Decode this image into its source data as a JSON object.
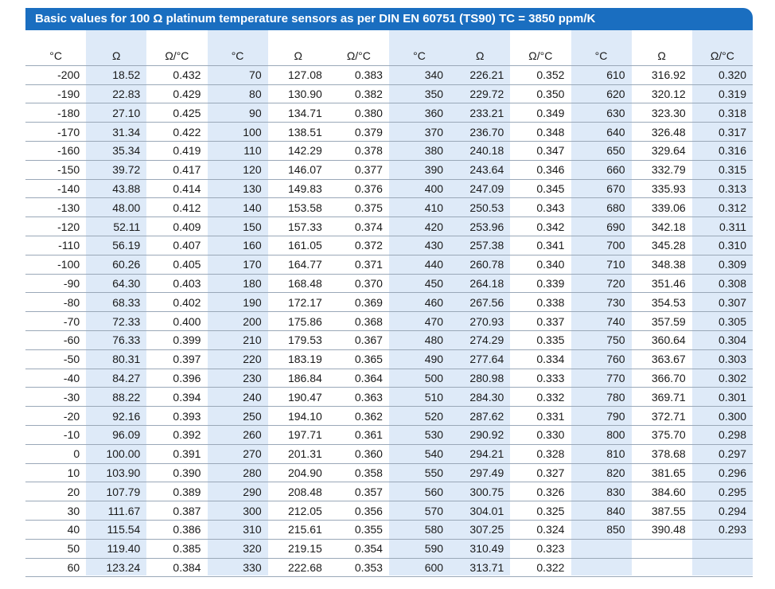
{
  "title": "Basic values for 100 Ω platinum temperature sensors as per DIN EN 60751 (TS90) TC = 3850 ppm/K",
  "headers": [
    "°C",
    "Ω",
    "Ω/°C",
    "°C",
    "Ω",
    "Ω/°C",
    "°C",
    "Ω",
    "Ω/°C",
    "°C",
    "Ω",
    "Ω/°C"
  ],
  "rows": [
    [
      "-200",
      "18.52",
      "0.432",
      "70",
      "127.08",
      "0.383",
      "340",
      "226.21",
      "0.352",
      "610",
      "316.92",
      "0.320"
    ],
    [
      "-190",
      "22.83",
      "0.429",
      "80",
      "130.90",
      "0.382",
      "350",
      "229.72",
      "0.350",
      "620",
      "320.12",
      "0.319"
    ],
    [
      "-180",
      "27.10",
      "0.425",
      "90",
      "134.71",
      "0.380",
      "360",
      "233.21",
      "0.349",
      "630",
      "323.30",
      "0.318"
    ],
    [
      "-170",
      "31.34",
      "0.422",
      "100",
      "138.51",
      "0.379",
      "370",
      "236.70",
      "0.348",
      "640",
      "326.48",
      "0.317"
    ],
    [
      "-160",
      "35.34",
      "0.419",
      "110",
      "142.29",
      "0.378",
      "380",
      "240.18",
      "0.347",
      "650",
      "329.64",
      "0.316"
    ],
    [
      "-150",
      "39.72",
      "0.417",
      "120",
      "146.07",
      "0.377",
      "390",
      "243.64",
      "0.346",
      "660",
      "332.79",
      "0.315"
    ],
    [
      "-140",
      "43.88",
      "0.414",
      "130",
      "149.83",
      "0.376",
      "400",
      "247.09",
      "0.345",
      "670",
      "335.93",
      "0.313"
    ],
    [
      "-130",
      "48.00",
      "0.412",
      "140",
      "153.58",
      "0.375",
      "410",
      "250.53",
      "0.343",
      "680",
      "339.06",
      "0.312"
    ],
    [
      "-120",
      "52.11",
      "0.409",
      "150",
      "157.33",
      "0.374",
      "420",
      "253.96",
      "0.342",
      "690",
      "342.18",
      "0.311"
    ],
    [
      "-110",
      "56.19",
      "0.407",
      "160",
      "161.05",
      "0.372",
      "430",
      "257.38",
      "0.341",
      "700",
      "345.28",
      "0.310"
    ],
    [
      "-100",
      "60.26",
      "0.405",
      "170",
      "164.77",
      "0.371",
      "440",
      "260.78",
      "0.340",
      "710",
      "348.38",
      "0.309"
    ],
    [
      "-90",
      "64.30",
      "0.403",
      "180",
      "168.48",
      "0.370",
      "450",
      "264.18",
      "0.339",
      "720",
      "351.46",
      "0.308"
    ],
    [
      "-80",
      "68.33",
      "0.402",
      "190",
      "172.17",
      "0.369",
      "460",
      "267.56",
      "0.338",
      "730",
      "354.53",
      "0.307"
    ],
    [
      "-70",
      "72.33",
      "0.400",
      "200",
      "175.86",
      "0.368",
      "470",
      "270.93",
      "0.337",
      "740",
      "357.59",
      "0.305"
    ],
    [
      "-60",
      "76.33",
      "0.399",
      "210",
      "179.53",
      "0.367",
      "480",
      "274.29",
      "0.335",
      "750",
      "360.64",
      "0.304"
    ],
    [
      "-50",
      "80.31",
      "0.397",
      "220",
      "183.19",
      "0.365",
      "490",
      "277.64",
      "0.334",
      "760",
      "363.67",
      "0.303"
    ],
    [
      "-40",
      "84.27",
      "0.396",
      "230",
      "186.84",
      "0.364",
      "500",
      "280.98",
      "0.333",
      "770",
      "366.70",
      "0.302"
    ],
    [
      "-30",
      "88.22",
      "0.394",
      "240",
      "190.47",
      "0.363",
      "510",
      "284.30",
      "0.332",
      "780",
      "369.71",
      "0.301"
    ],
    [
      "-20",
      "92.16",
      "0.393",
      "250",
      "194.10",
      "0.362",
      "520",
      "287.62",
      "0.331",
      "790",
      "372.71",
      "0.300"
    ],
    [
      "-10",
      "96.09",
      "0.392",
      "260",
      "197.71",
      "0.361",
      "530",
      "290.92",
      "0.330",
      "800",
      "375.70",
      "0.298"
    ],
    [
      "0",
      "100.00",
      "0.391",
      "270",
      "201.31",
      "0.360",
      "540",
      "294.21",
      "0.328",
      "810",
      "378.68",
      "0.297"
    ],
    [
      "10",
      "103.90",
      "0.390",
      "280",
      "204.90",
      "0.358",
      "550",
      "297.49",
      "0.327",
      "820",
      "381.65",
      "0.296"
    ],
    [
      "20",
      "107.79",
      "0.389",
      "290",
      "208.48",
      "0.357",
      "560",
      "300.75",
      "0.326",
      "830",
      "384.60",
      "0.295"
    ],
    [
      "30",
      "111.67",
      "0.387",
      "300",
      "212.05",
      "0.356",
      "570",
      "304.01",
      "0.325",
      "840",
      "387.55",
      "0.294"
    ],
    [
      "40",
      "115.54",
      "0.386",
      "310",
      "215.61",
      "0.355",
      "580",
      "307.25",
      "0.324",
      "850",
      "390.48",
      "0.293"
    ],
    [
      "50",
      "119.40",
      "0.385",
      "320",
      "219.15",
      "0.354",
      "590",
      "310.49",
      "0.323",
      "",
      "",
      ""
    ],
    [
      "60",
      "123.24",
      "0.384",
      "330",
      "222.68",
      "0.353",
      "600",
      "313.71",
      "0.322",
      "",
      "",
      ""
    ]
  ],
  "colors": {
    "banner": "#1a6ec0",
    "shade": "#deeaf8",
    "rule": "#9aa8b8"
  }
}
